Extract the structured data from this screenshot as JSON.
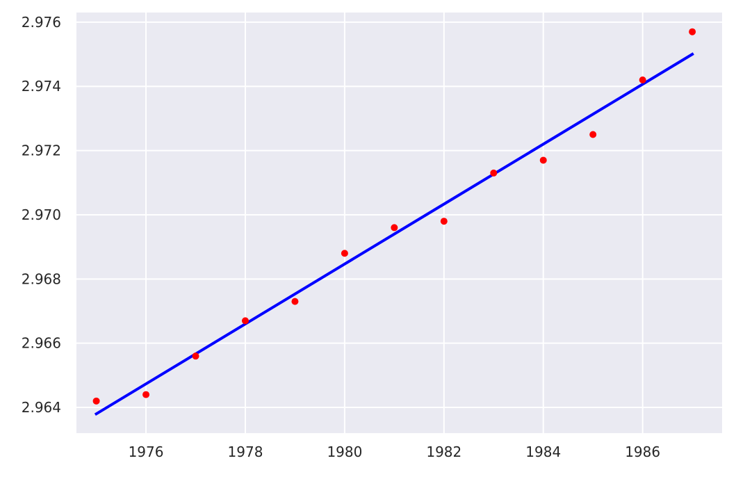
{
  "chart_data": {
    "type": "scatter",
    "title": "",
    "xlabel": "",
    "ylabel": "",
    "xlim": [
      1974.6,
      1987.6
    ],
    "ylim": [
      2.9632,
      2.9763
    ],
    "xticks": [
      1976,
      1978,
      1980,
      1982,
      1984,
      1986
    ],
    "xtick_labels": [
      "1976",
      "1978",
      "1980",
      "1982",
      "1984",
      "1986"
    ],
    "yticks": [
      2.964,
      2.966,
      2.968,
      2.97,
      2.972,
      2.974,
      2.976
    ],
    "ytick_labels": [
      "2.964",
      "2.966",
      "2.968",
      "2.970",
      "2.972",
      "2.974",
      "2.976"
    ],
    "grid": true,
    "legend": "none",
    "background_color": "#eaeaf2",
    "grid_color": "#ffffff",
    "series": [
      {
        "kind": "scatter",
        "color": "#ff0000",
        "x": [
          1975,
          1976,
          1977,
          1978,
          1979,
          1980,
          1981,
          1982,
          1983,
          1984,
          1985,
          1986,
          1987
        ],
        "y": [
          2.9642,
          2.9644,
          2.9656,
          2.9667,
          2.9673,
          2.9688,
          2.9696,
          2.9698,
          2.9713,
          2.9717,
          2.9725,
          2.9742,
          2.9757
        ]
      },
      {
        "kind": "line",
        "color": "#0000ff",
        "x": [
          1975,
          1987
        ],
        "y": [
          2.9638,
          2.975
        ]
      }
    ]
  }
}
